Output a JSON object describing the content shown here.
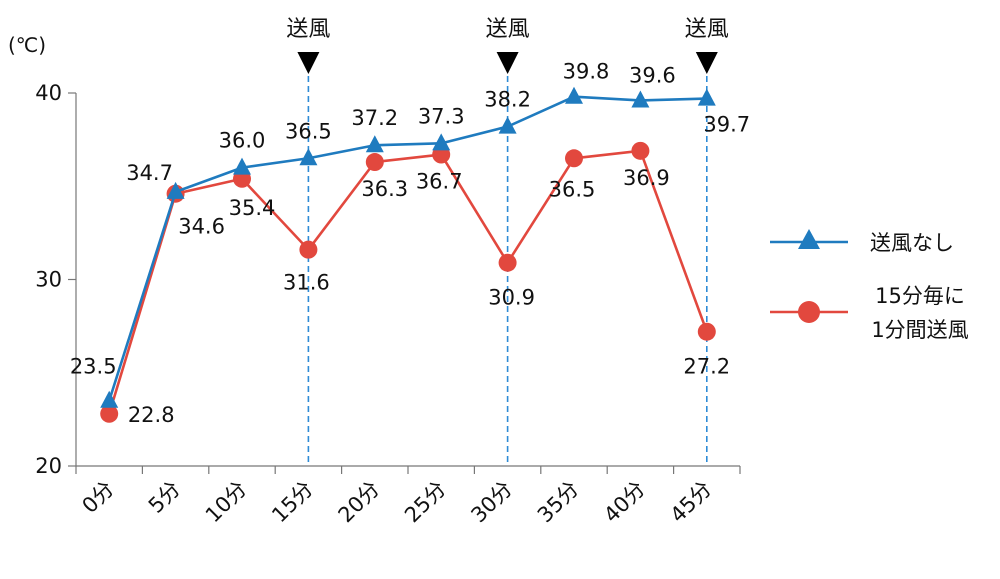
{
  "chart_data": {
    "type": "line",
    "ylabel": "(℃)",
    "ylim": [
      20,
      40
    ],
    "yticks": [
      20,
      30,
      40
    ],
    "categories": [
      "0分",
      "5分",
      "10分",
      "15分",
      "20分",
      "25分",
      "30分",
      "35分",
      "40分",
      "45分"
    ],
    "series": [
      {
        "name": "送風なし",
        "color": "#1f7bbf",
        "marker": "triangle",
        "values": [
          23.5,
          34.7,
          36.0,
          36.5,
          37.2,
          37.3,
          38.2,
          39.8,
          39.6,
          39.7
        ],
        "labels": [
          "23.5",
          "34.7",
          "36.0",
          "36.5",
          "37.2",
          "37.3",
          "38.2",
          "39.8",
          "39.6",
          "39.7"
        ]
      },
      {
        "name": "15分毎に1分間送風",
        "legend_lines": [
          "15分毎に",
          "1分間送風"
        ],
        "color": "#e2483e",
        "marker": "circle",
        "values": [
          22.8,
          34.6,
          35.4,
          31.6,
          36.3,
          36.7,
          30.9,
          36.5,
          36.9,
          27.2
        ],
        "labels": [
          "22.8",
          "34.6",
          "35.4",
          "31.6",
          "36.3",
          "36.7",
          "30.9",
          "36.5",
          "36.9",
          "27.2"
        ]
      }
    ],
    "annotations": [
      {
        "text": "送風",
        "category_index": 3
      },
      {
        "text": "送風",
        "category_index": 6
      },
      {
        "text": "送風",
        "category_index": 9
      }
    ],
    "grid": false,
    "legend_position": "right"
  }
}
